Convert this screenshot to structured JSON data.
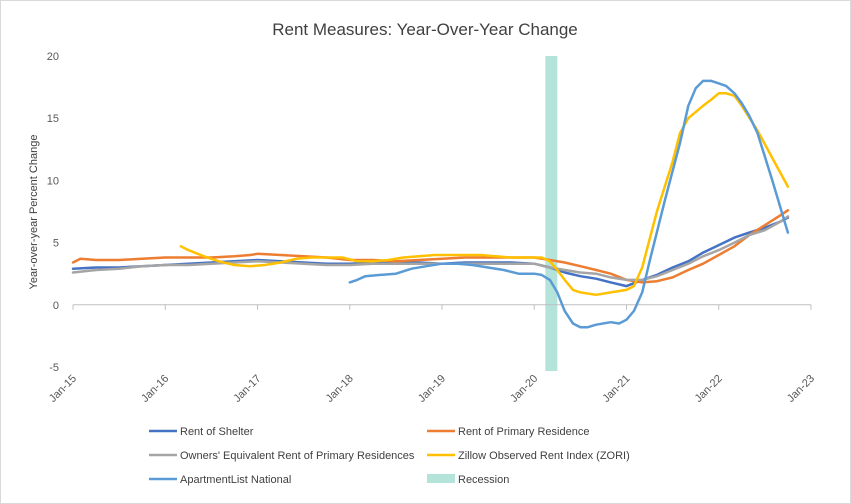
{
  "chart_data": {
    "type": "line",
    "title": "Rent Measures: Year-Over-Year Change",
    "xlabel": "",
    "ylabel": "Year-over-year Percent Change",
    "ylim": [
      -5,
      20
    ],
    "yticks": [
      -5,
      0,
      5,
      10,
      15,
      20
    ],
    "xlim": [
      2015.0,
      2023.0
    ],
    "xticks": [
      {
        "x": 2015.0,
        "label": "Jan-15"
      },
      {
        "x": 2016.0,
        "label": "Jan-16"
      },
      {
        "x": 2017.0,
        "label": "Jan-17"
      },
      {
        "x": 2018.0,
        "label": "Jan-18"
      },
      {
        "x": 2019.0,
        "label": "Jan-19"
      },
      {
        "x": 2020.0,
        "label": "Jan-20"
      },
      {
        "x": 2021.0,
        "label": "Jan-21"
      },
      {
        "x": 2022.0,
        "label": "Jan-22"
      },
      {
        "x": 2023.0,
        "label": "Jan-23"
      }
    ],
    "recession": {
      "name": "Recession",
      "start": 2020.12,
      "end": 2020.25,
      "color": "#b4e3d9"
    },
    "series": [
      {
        "name": "Rent of Shelter",
        "color": "#4472c4",
        "points": [
          [
            2015.0,
            2.9
          ],
          [
            2015.25,
            3.0
          ],
          [
            2015.5,
            3.0
          ],
          [
            2015.75,
            3.1
          ],
          [
            2016.0,
            3.2
          ],
          [
            2016.25,
            3.3
          ],
          [
            2016.5,
            3.4
          ],
          [
            2016.75,
            3.5
          ],
          [
            2017.0,
            3.6
          ],
          [
            2017.25,
            3.5
          ],
          [
            2017.5,
            3.4
          ],
          [
            2017.75,
            3.3
          ],
          [
            2018.0,
            3.3
          ],
          [
            2018.25,
            3.4
          ],
          [
            2018.5,
            3.4
          ],
          [
            2018.75,
            3.4
          ],
          [
            2019.0,
            3.3
          ],
          [
            2019.25,
            3.4
          ],
          [
            2019.5,
            3.4
          ],
          [
            2019.75,
            3.4
          ],
          [
            2020.0,
            3.3
          ],
          [
            2020.17,
            3.0
          ],
          [
            2020.33,
            2.6
          ],
          [
            2020.5,
            2.3
          ],
          [
            2020.67,
            2.1
          ],
          [
            2020.83,
            1.8
          ],
          [
            2021.0,
            1.5
          ],
          [
            2021.17,
            2.0
          ],
          [
            2021.33,
            2.4
          ],
          [
            2021.5,
            3.0
          ],
          [
            2021.67,
            3.5
          ],
          [
            2021.83,
            4.2
          ],
          [
            2022.0,
            4.8
          ],
          [
            2022.17,
            5.4
          ],
          [
            2022.33,
            5.8
          ],
          [
            2022.5,
            6.2
          ],
          [
            2022.67,
            6.7
          ],
          [
            2022.75,
            7.0
          ]
        ]
      },
      {
        "name": "Rent of Primary Residence",
        "color": "#ed7d31",
        "points": [
          [
            2015.0,
            3.4
          ],
          [
            2015.08,
            3.7
          ],
          [
            2015.25,
            3.6
          ],
          [
            2015.5,
            3.6
          ],
          [
            2015.75,
            3.7
          ],
          [
            2016.0,
            3.8
          ],
          [
            2016.25,
            3.8
          ],
          [
            2016.5,
            3.8
          ],
          [
            2016.75,
            3.9
          ],
          [
            2016.92,
            4.0
          ],
          [
            2017.0,
            4.1
          ],
          [
            2017.25,
            4.0
          ],
          [
            2017.5,
            3.9
          ],
          [
            2017.75,
            3.8
          ],
          [
            2018.0,
            3.6
          ],
          [
            2018.25,
            3.6
          ],
          [
            2018.5,
            3.5
          ],
          [
            2018.75,
            3.6
          ],
          [
            2019.0,
            3.7
          ],
          [
            2019.25,
            3.8
          ],
          [
            2019.5,
            3.8
          ],
          [
            2019.75,
            3.8
          ],
          [
            2020.0,
            3.8
          ],
          [
            2020.17,
            3.6
          ],
          [
            2020.33,
            3.4
          ],
          [
            2020.5,
            3.1
          ],
          [
            2020.67,
            2.8
          ],
          [
            2020.83,
            2.5
          ],
          [
            2021.0,
            2.0
          ],
          [
            2021.17,
            1.8
          ],
          [
            2021.33,
            1.9
          ],
          [
            2021.5,
            2.2
          ],
          [
            2021.67,
            2.8
          ],
          [
            2021.83,
            3.3
          ],
          [
            2022.0,
            4.0
          ],
          [
            2022.17,
            4.7
          ],
          [
            2022.33,
            5.6
          ],
          [
            2022.5,
            6.4
          ],
          [
            2022.67,
            7.2
          ],
          [
            2022.75,
            7.6
          ]
        ]
      },
      {
        "name": "Owners' Equivalent Rent of Primary Residences",
        "color": "#a5a5a5",
        "points": [
          [
            2015.0,
            2.6
          ],
          [
            2015.25,
            2.8
          ],
          [
            2015.5,
            2.9
          ],
          [
            2015.75,
            3.1
          ],
          [
            2016.0,
            3.2
          ],
          [
            2016.25,
            3.2
          ],
          [
            2016.5,
            3.3
          ],
          [
            2016.75,
            3.4
          ],
          [
            2017.0,
            3.5
          ],
          [
            2017.25,
            3.4
          ],
          [
            2017.5,
            3.3
          ],
          [
            2017.75,
            3.2
          ],
          [
            2018.0,
            3.2
          ],
          [
            2018.25,
            3.3
          ],
          [
            2018.5,
            3.3
          ],
          [
            2018.75,
            3.3
          ],
          [
            2019.0,
            3.3
          ],
          [
            2019.25,
            3.3
          ],
          [
            2019.5,
            3.3
          ],
          [
            2019.75,
            3.3
          ],
          [
            2020.0,
            3.3
          ],
          [
            2020.17,
            3.0
          ],
          [
            2020.33,
            2.8
          ],
          [
            2020.5,
            2.6
          ],
          [
            2020.67,
            2.5
          ],
          [
            2020.83,
            2.2
          ],
          [
            2021.0,
            2.0
          ],
          [
            2021.17,
            2.0
          ],
          [
            2021.33,
            2.3
          ],
          [
            2021.5,
            2.8
          ],
          [
            2021.67,
            3.3
          ],
          [
            2021.83,
            3.9
          ],
          [
            2022.0,
            4.4
          ],
          [
            2022.17,
            5.0
          ],
          [
            2022.33,
            5.6
          ],
          [
            2022.5,
            6.0
          ],
          [
            2022.67,
            6.7
          ],
          [
            2022.75,
            7.1
          ]
        ]
      },
      {
        "name": "Zillow Observed Rent Index (ZORI)",
        "color": "#ffc000",
        "points": [
          [
            2016.17,
            4.7
          ],
          [
            2016.25,
            4.4
          ],
          [
            2016.42,
            3.9
          ],
          [
            2016.58,
            3.5
          ],
          [
            2016.75,
            3.2
          ],
          [
            2016.92,
            3.1
          ],
          [
            2017.08,
            3.2
          ],
          [
            2017.25,
            3.4
          ],
          [
            2017.42,
            3.7
          ],
          [
            2017.58,
            3.8
          ],
          [
            2017.75,
            3.8
          ],
          [
            2017.92,
            3.8
          ],
          [
            2018.08,
            3.5
          ],
          [
            2018.25,
            3.5
          ],
          [
            2018.42,
            3.6
          ],
          [
            2018.58,
            3.8
          ],
          [
            2018.75,
            3.9
          ],
          [
            2018.92,
            4.0
          ],
          [
            2019.08,
            4.0
          ],
          [
            2019.25,
            4.0
          ],
          [
            2019.42,
            4.0
          ],
          [
            2019.58,
            3.9
          ],
          [
            2019.75,
            3.8
          ],
          [
            2019.92,
            3.8
          ],
          [
            2020.08,
            3.8
          ],
          [
            2020.17,
            3.5
          ],
          [
            2020.25,
            2.8
          ],
          [
            2020.33,
            2.0
          ],
          [
            2020.42,
            1.2
          ],
          [
            2020.5,
            1.0
          ],
          [
            2020.67,
            0.8
          ],
          [
            2020.83,
            1.0
          ],
          [
            2021.0,
            1.2
          ],
          [
            2021.08,
            1.5
          ],
          [
            2021.17,
            3.0
          ],
          [
            2021.33,
            7.5
          ],
          [
            2021.5,
            11.5
          ],
          [
            2021.58,
            13.8
          ],
          [
            2021.67,
            15.0
          ],
          [
            2021.83,
            16.0
          ],
          [
            2021.92,
            16.5
          ],
          [
            2022.0,
            17.0
          ],
          [
            2022.08,
            17.0
          ],
          [
            2022.17,
            16.8
          ],
          [
            2022.25,
            16.0
          ],
          [
            2022.42,
            14.0
          ],
          [
            2022.58,
            11.8
          ],
          [
            2022.75,
            9.5
          ]
        ]
      },
      {
        "name": "ApartmentList National",
        "color": "#5b9bd5",
        "points": [
          [
            2018.0,
            1.8
          ],
          [
            2018.08,
            2.0
          ],
          [
            2018.17,
            2.3
          ],
          [
            2018.33,
            2.4
          ],
          [
            2018.5,
            2.5
          ],
          [
            2018.67,
            2.9
          ],
          [
            2018.83,
            3.1
          ],
          [
            2019.0,
            3.3
          ],
          [
            2019.17,
            3.3
          ],
          [
            2019.33,
            3.2
          ],
          [
            2019.5,
            3.0
          ],
          [
            2019.67,
            2.8
          ],
          [
            2019.83,
            2.5
          ],
          [
            2020.0,
            2.5
          ],
          [
            2020.08,
            2.4
          ],
          [
            2020.17,
            2.0
          ],
          [
            2020.25,
            1.0
          ],
          [
            2020.33,
            -0.5
          ],
          [
            2020.42,
            -1.5
          ],
          [
            2020.5,
            -1.8
          ],
          [
            2020.58,
            -1.8
          ],
          [
            2020.67,
            -1.6
          ],
          [
            2020.83,
            -1.4
          ],
          [
            2020.92,
            -1.5
          ],
          [
            2021.0,
            -1.2
          ],
          [
            2021.08,
            -0.5
          ],
          [
            2021.17,
            1.0
          ],
          [
            2021.25,
            3.5
          ],
          [
            2021.42,
            8.5
          ],
          [
            2021.58,
            13.0
          ],
          [
            2021.67,
            16.0
          ],
          [
            2021.75,
            17.4
          ],
          [
            2021.83,
            18.0
          ],
          [
            2021.92,
            18.0
          ],
          [
            2022.0,
            17.8
          ],
          [
            2022.08,
            17.6
          ],
          [
            2022.17,
            17.0
          ],
          [
            2022.25,
            16.2
          ],
          [
            2022.33,
            15.2
          ],
          [
            2022.42,
            13.8
          ],
          [
            2022.58,
            10.0
          ],
          [
            2022.75,
            5.8
          ]
        ]
      }
    ],
    "legend": {
      "position": "bottom",
      "entries": [
        {
          "label": "Rent of Shelter",
          "kind": "line",
          "color": "#4472c4"
        },
        {
          "label": "Rent of Primary Residence",
          "kind": "line",
          "color": "#ed7d31"
        },
        {
          "label": "Owners' Equivalent Rent of Primary Residences",
          "kind": "line",
          "color": "#a5a5a5"
        },
        {
          "label": "Zillow Observed Rent Index (ZORI)",
          "kind": "line",
          "color": "#ffc000"
        },
        {
          "label": "ApartmentList National",
          "kind": "line",
          "color": "#5b9bd5"
        },
        {
          "label": "Recession",
          "kind": "box",
          "color": "#b4e3d9"
        }
      ]
    },
    "axis_color": "#bfbfbf",
    "grid": false
  }
}
